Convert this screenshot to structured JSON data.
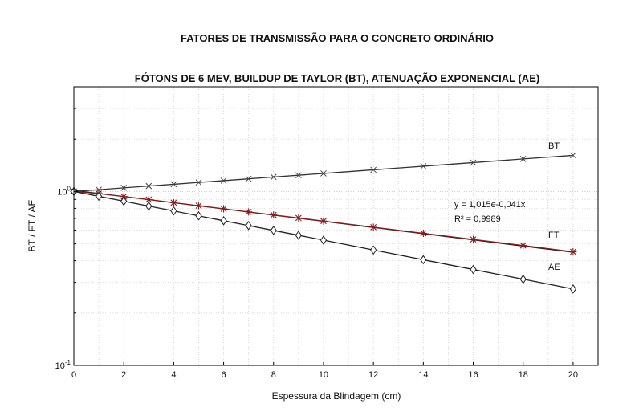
{
  "chart_data": {
    "type": "line",
    "title": "FATORES DE TRANSMISSÃO PARA O CONCRETO ORDINÁRIO",
    "subtitle": "FÓTONS DE 6 MEV, BUILDUP DE TAYLOR (BT), ATENUAÇÃO EXPONENCIAL (AE)",
    "xlabel": "Espessura da Blindagem (cm)",
    "ylabel": "BT / FT / AE",
    "xlim": [
      0,
      21
    ],
    "ylim": [
      0.1,
      4
    ],
    "yscale": "log",
    "grid": true,
    "x_ticks": [
      "0",
      "2",
      "4",
      "6",
      "8",
      "10",
      "12",
      "14",
      "16",
      "18",
      "20"
    ],
    "y_ticks": [
      {
        "base": "10",
        "exp": "-1",
        "value": 0.1
      },
      {
        "base": "10",
        "exp": "0",
        "value": 1
      }
    ],
    "series": [
      {
        "name": "BT",
        "color": "#333333",
        "marker": "x",
        "x": [
          0,
          1,
          2,
          3,
          4,
          5,
          6,
          7,
          8,
          9,
          10,
          12,
          14,
          16,
          18,
          20
        ],
        "values": [
          1.0,
          1.024,
          1.049,
          1.075,
          1.1,
          1.127,
          1.154,
          1.182,
          1.211,
          1.24,
          1.27,
          1.332,
          1.397,
          1.466,
          1.538,
          1.613
        ]
      },
      {
        "name": "FT",
        "color": "#8b1a1a",
        "marker": "*",
        "x": [
          0,
          1,
          2,
          3,
          4,
          5,
          6,
          7,
          8,
          9,
          10,
          12,
          14,
          16,
          18,
          20
        ],
        "values": [
          1.0,
          0.973,
          0.935,
          0.898,
          0.862,
          0.828,
          0.795,
          0.763,
          0.733,
          0.704,
          0.676,
          0.623,
          0.575,
          0.53,
          0.489,
          0.45
        ]
      },
      {
        "name": "AE",
        "color": "#222222",
        "marker": "diamond",
        "x": [
          0,
          1,
          2,
          3,
          4,
          5,
          6,
          7,
          8,
          9,
          10,
          12,
          14,
          16,
          18,
          20
        ],
        "values": [
          1.0,
          0.938,
          0.879,
          0.824,
          0.773,
          0.724,
          0.679,
          0.637,
          0.597,
          0.56,
          0.525,
          0.461,
          0.405,
          0.356,
          0.313,
          0.275
        ]
      }
    ],
    "trendline": {
      "series": "FT",
      "equation": "y = 1,015e-0,041x",
      "r2": "R² = 0,9989",
      "color": "#111111"
    },
    "series_labels": [
      "BT",
      "FT",
      "AE"
    ]
  }
}
